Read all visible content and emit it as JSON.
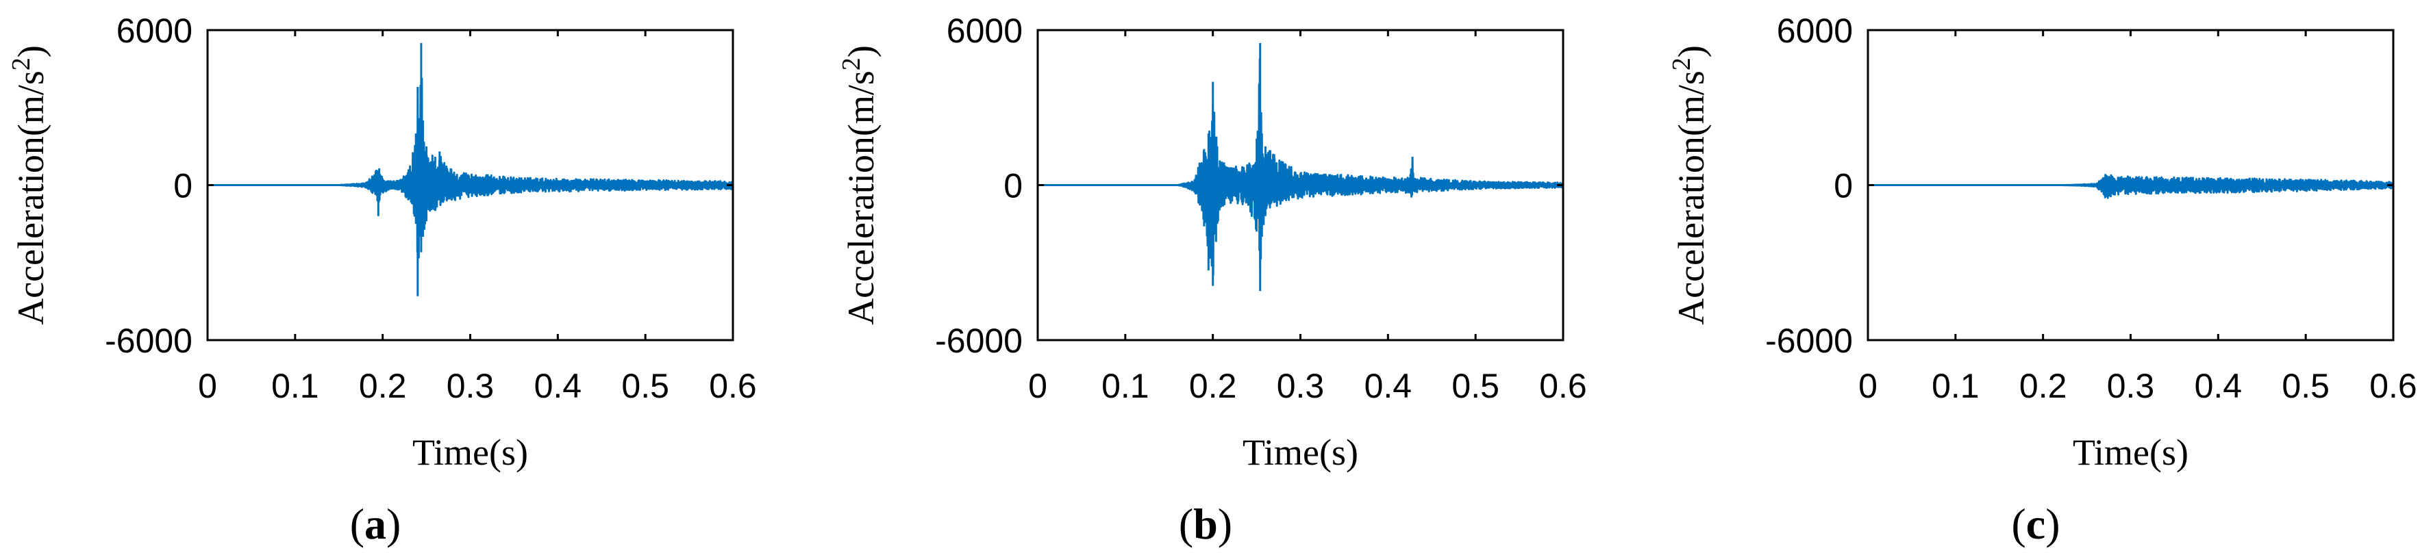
{
  "chart_data": [
    {
      "type": "line",
      "panel_label": "a",
      "xlabel": "Time(s)",
      "ylabel": "Acceleration(m/s2)",
      "ylabel_main": "Acceleration(m/s",
      "ylabel_sup": "2",
      "ylabel_close": ")",
      "xlim": [
        0,
        0.6
      ],
      "ylim": [
        -6000,
        6000
      ],
      "xticks": [
        "0",
        "0.1",
        "0.2",
        "0.3",
        "0.4",
        "0.5",
        "0.6"
      ],
      "yticks": [
        "6000",
        "0",
        "-6000"
      ],
      "color": "#0072BD",
      "envelope": {
        "t": [
          0,
          0.15,
          0.18,
          0.19,
          0.195,
          0.2,
          0.21,
          0.22,
          0.23,
          0.238,
          0.24,
          0.242,
          0.244,
          0.246,
          0.25,
          0.26,
          0.265,
          0.27,
          0.28,
          0.3,
          0.35,
          0.4,
          0.5,
          0.6
        ],
        "upper": [
          0,
          0,
          80,
          400,
          700,
          300,
          150,
          200,
          600,
          2000,
          3800,
          2000,
          5500,
          2500,
          1500,
          1100,
          1300,
          900,
          600,
          450,
          300,
          250,
          200,
          150
        ],
        "lower": [
          0,
          0,
          -80,
          -400,
          -1200,
          -300,
          -150,
          -200,
          -600,
          -1500,
          -4300,
          -2000,
          -2600,
          -2000,
          -1400,
          -1000,
          -800,
          -700,
          -600,
          -450,
          -300,
          -250,
          -200,
          -150
        ]
      }
    },
    {
      "type": "line",
      "panel_label": "b",
      "xlabel": "Time(s)",
      "ylabel": "Acceleration(m/s2)",
      "ylabel_main": "Acceleration(m/s",
      "ylabel_sup": "2",
      "ylabel_close": ")",
      "xlim": [
        0,
        0.6
      ],
      "ylim": [
        -6000,
        6000
      ],
      "xticks": [
        "0",
        "0.1",
        "0.2",
        "0.3",
        "0.4",
        "0.5",
        "0.6"
      ],
      "yticks": [
        "6000",
        "0",
        "-6000"
      ],
      "color": "#0072BD",
      "envelope": {
        "t": [
          0,
          0.16,
          0.17,
          0.18,
          0.185,
          0.19,
          0.195,
          0.2,
          0.205,
          0.21,
          0.22,
          0.23,
          0.24,
          0.25,
          0.254,
          0.256,
          0.26,
          0.27,
          0.28,
          0.3,
          0.35,
          0.4,
          0.425,
          0.428,
          0.43,
          0.45,
          0.5,
          0.6
        ],
        "upper": [
          0,
          0,
          100,
          300,
          900,
          1400,
          2000,
          4000,
          1500,
          900,
          800,
          700,
          900,
          1800,
          5500,
          2000,
          1500,
          1200,
          900,
          500,
          400,
          300,
          300,
          1100,
          300,
          250,
          150,
          100
        ],
        "lower": [
          0,
          0,
          -100,
          -300,
          -900,
          -1600,
          -3300,
          -3900,
          -1500,
          -900,
          -800,
          -700,
          -900,
          -1800,
          -4100,
          -2000,
          -1200,
          -900,
          -700,
          -500,
          -400,
          -300,
          -300,
          -600,
          -300,
          -250,
          -150,
          -100
        ]
      }
    },
    {
      "type": "line",
      "panel_label": "c",
      "xlabel": "Time(s)",
      "ylabel": "Acceleration(m/s2)",
      "ylabel_main": "Acceleration(m/s",
      "ylabel_sup": "2",
      "ylabel_close": ")",
      "xlim": [
        0,
        0.6
      ],
      "ylim": [
        -6000,
        6000
      ],
      "xticks": [
        "0",
        "0.1",
        "0.2",
        "0.3",
        "0.4",
        "0.5",
        "0.6"
      ],
      "yticks": [
        "6000",
        "0",
        "-6000"
      ],
      "color": "#0072BD",
      "envelope": {
        "t": [
          0,
          0.22,
          0.24,
          0.26,
          0.268,
          0.272,
          0.28,
          0.3,
          0.35,
          0.4,
          0.45,
          0.5,
          0.55,
          0.6
        ],
        "upper": [
          0,
          0,
          20,
          60,
          300,
          450,
          380,
          330,
          300,
          280,
          250,
          220,
          180,
          120
        ],
        "lower": [
          0,
          0,
          -20,
          -60,
          -350,
          -550,
          -400,
          -350,
          -320,
          -300,
          -270,
          -230,
          -180,
          -120
        ]
      }
    }
  ]
}
